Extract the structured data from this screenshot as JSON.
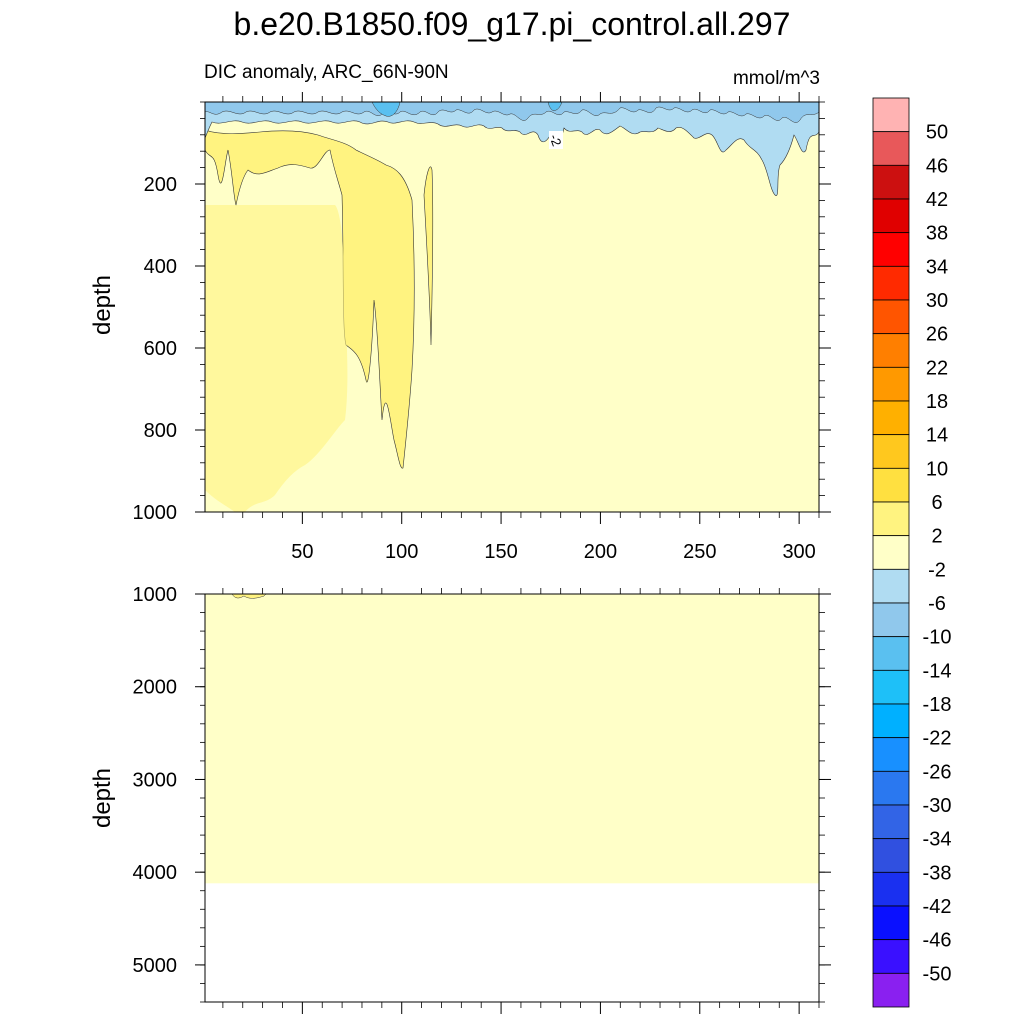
{
  "chart_data": {
    "type": "heatmap",
    "title": "b.e20.B1850.f09_g17.pi_control.all.297",
    "left_subtitle": "DIC anomaly, ARC_66N-90N",
    "right_subtitle": "mmol/m^3",
    "xlim": [
      1,
      310
    ],
    "x_tick_labels": [
      "50",
      "100",
      "150",
      "200",
      "250",
      "300"
    ],
    "x_ticks": [
      50,
      100,
      150,
      200,
      250,
      300
    ],
    "contour_label": "-2",
    "panels": [
      {
        "name": "upper",
        "ylabel": "depth",
        "ylim": [
          0,
          1000
        ],
        "y_ticks": [
          200,
          400,
          600,
          800,
          1000
        ],
        "y_tick_labels": [
          "200",
          "400",
          "600",
          "800",
          "1000"
        ]
      },
      {
        "name": "lower",
        "ylabel": "depth",
        "ylim": [
          1000,
          5400
        ],
        "y_ticks": [
          1000,
          2000,
          3000,
          4000,
          5000
        ],
        "y_tick_labels": [
          "1000",
          "2000",
          "3000",
          "4000",
          "5000"
        ],
        "data_bottom_depth": 4120
      }
    ],
    "colorbar": {
      "labels": [
        "50",
        "46",
        "42",
        "38",
        "34",
        "30",
        "26",
        "22",
        "18",
        "14",
        "10",
        "6",
        "2",
        "-2",
        "-6",
        "-10",
        "-14",
        "-18",
        "-22",
        "-26",
        "-30",
        "-34",
        "-38",
        "-42",
        "-46",
        "-50"
      ],
      "colors": [
        "#ffb3b3",
        "#e8585a",
        "#cc1010",
        "#e00000",
        "#ff0000",
        "#ff2a00",
        "#ff5500",
        "#ff7f00",
        "#ff9900",
        "#ffb000",
        "#ffc81e",
        "#ffe040",
        "#fff380",
        "#ffffc8",
        "#b0dcf2",
        "#90c8ec",
        "#5ac0f0",
        "#1ec0f8",
        "#00b0ff",
        "#1890ff",
        "#2a78f0",
        "#3264e6",
        "#3050e0",
        "#1a30f0",
        "#0a10ff",
        "#3a10ff",
        "#8a20f0"
      ]
    }
  }
}
